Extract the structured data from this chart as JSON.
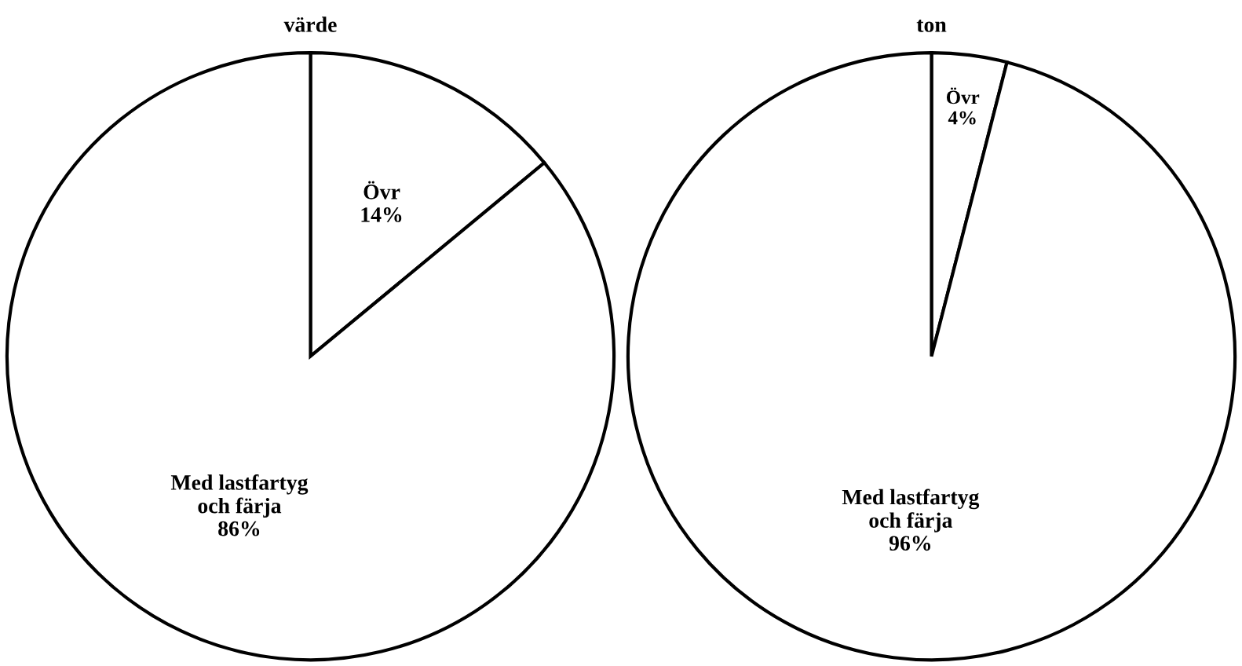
{
  "chart_data": [
    {
      "type": "pie",
      "title": "värde",
      "categories": [
        "Övr",
        "Med lastfartyg\noch färja"
      ],
      "values": [
        14,
        86
      ],
      "value_labels": [
        "14%",
        "86%"
      ],
      "colors": [
        "#ffffff",
        "#ffffff"
      ]
    },
    {
      "type": "pie",
      "title": "ton",
      "categories": [
        "Övr",
        "Med lastfartyg\noch färja"
      ],
      "values": [
        4,
        96
      ],
      "value_labels": [
        "4%",
        "96%"
      ],
      "colors": [
        "#ffffff",
        "#ffffff"
      ]
    }
  ]
}
